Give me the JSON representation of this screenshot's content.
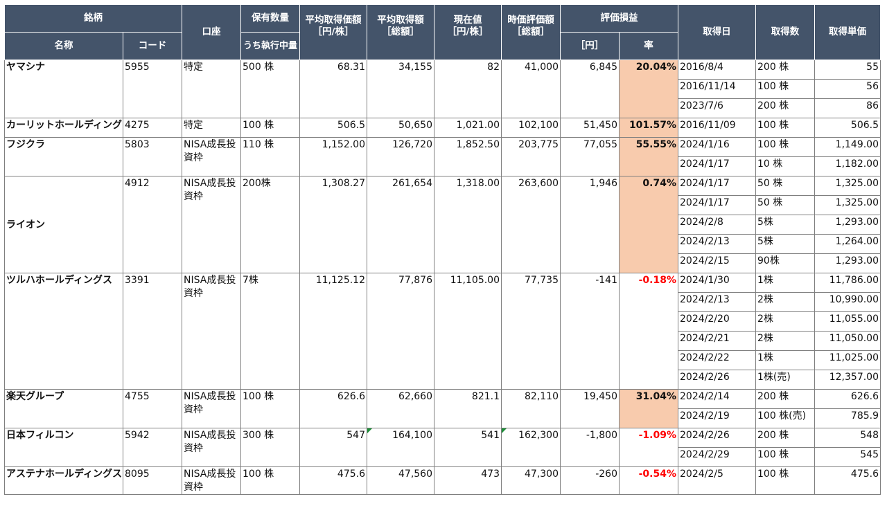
{
  "headers": {
    "meigara": "銘柄",
    "name": "名称",
    "code": "コード",
    "account": "口座",
    "holding": "保有数量",
    "holding_sub": "うち執行中量",
    "avg_price_1": "平均取得価額",
    "avg_price_2": "［円/株］",
    "avg_total_1": "平均取得額",
    "avg_total_2": "［総額］",
    "current_1": "現在値",
    "current_2": "［円/株］",
    "market_1": "時価評価額",
    "market_2": "［総額］",
    "pl": "評価損益",
    "pl_yen": "［円］",
    "pl_rate": "率",
    "acq_date": "取得日",
    "acq_qty": "取得数",
    "acq_price": "取得単価"
  },
  "stocks": [
    {
      "name": "ヤマシナ",
      "code": "5955",
      "account": "特定",
      "qty": "500 株",
      "avg_price": "68.31",
      "avg_total": "34,155",
      "current": "82",
      "market": "41,000",
      "pl": "6,845",
      "rate": "20.04%",
      "rate_sign": "pos",
      "lots": [
        {
          "date": "2016/8/4",
          "qty": "200 株",
          "price": "55"
        },
        {
          "date": "2016/11/14",
          "qty": "100 株",
          "price": "56"
        },
        {
          "date": "2023/7/6",
          "qty": "200 株",
          "price": "86"
        }
      ]
    },
    {
      "name": "カーリットホールディングス",
      "code": "4275",
      "account": "特定",
      "qty": "100 株",
      "avg_price": "506.5",
      "avg_total": "50,650",
      "current": "1,021.00",
      "market": "102,100",
      "pl": "51,450",
      "rate": "101.57%",
      "rate_sign": "pos",
      "lots": [
        {
          "date": "2016/11/09",
          "qty": "100 株",
          "price": "506.5"
        }
      ]
    },
    {
      "name": "フジクラ",
      "code": "5803",
      "account": "NISA成長投資枠",
      "qty": "110 株",
      "avg_price": "1,152.00",
      "avg_total": "126,720",
      "current": "1,852.50",
      "market": "203,775",
      "pl": "77,055",
      "rate": "55.55%",
      "rate_sign": "pos",
      "lots": [
        {
          "date": "2024/1/16",
          "qty": "100 株",
          "price": "1,149.00"
        },
        {
          "date": "2024/1/17",
          "qty": "10 株",
          "price": "1,182.00"
        }
      ]
    },
    {
      "name": "ライオン",
      "code": "4912",
      "account": "NISA成長投資枠",
      "qty": "200株",
      "avg_price": "1,308.27",
      "avg_total": "261,654",
      "current": "1,318.00",
      "market": "263,600",
      "pl": "1,946",
      "rate": "0.74%",
      "rate_sign": "pos",
      "lots": [
        {
          "date": "2024/1/17",
          "qty": "50 株",
          "price": "1,325.00"
        },
        {
          "date": "2024/1/17",
          "qty": "50 株",
          "price": "1,325.00"
        },
        {
          "date": "2024/2/8",
          "qty": "5株",
          "price": "1,293.00"
        },
        {
          "date": "2024/2/13",
          "qty": "5株",
          "price": "1,264.00"
        },
        {
          "date": "2024/2/15",
          "qty": "90株",
          "price": "1,293.00"
        }
      ]
    },
    {
      "name": "ツルハホールディングス",
      "code": "3391",
      "account": "NISA成長投資枠",
      "qty": "7株",
      "avg_price": "11,125.12",
      "avg_total": "77,876",
      "current": "11,105.00",
      "market": "77,735",
      "pl": "-141",
      "rate": "-0.18%",
      "rate_sign": "neg",
      "lots": [
        {
          "date": "2024/1/30",
          "qty": "1株",
          "price": "11,786.00"
        },
        {
          "date": "2024/2/13",
          "qty": "2株",
          "price": "10,990.00"
        },
        {
          "date": "2024/2/20",
          "qty": "2株",
          "price": "11,055.00"
        },
        {
          "date": "2024/2/21",
          "qty": "2株",
          "price": "11,050.00"
        },
        {
          "date": "2024/2/22",
          "qty": "1株",
          "price": "11,025.00"
        },
        {
          "date": "2024/2/26",
          "qty": "1株(売)",
          "price": "12,357.00"
        }
      ]
    },
    {
      "name": "楽天グループ",
      "code": "4755",
      "account": "NISA成長投資枠",
      "qty": "100 株",
      "avg_price": "626.6",
      "avg_total": "62,660",
      "current": "821.1",
      "market": "82,110",
      "pl": "19,450",
      "rate": "31.04%",
      "rate_sign": "pos",
      "lots": [
        {
          "date": "2024/2/14",
          "qty": "200 株",
          "price": "626.6"
        },
        {
          "date": "2024/2/19",
          "qty": "100 株(売)",
          "price": "785.9"
        }
      ]
    },
    {
      "name": "日本フィルコン",
      "code": "5942",
      "account": "NISA成長投資枠",
      "qty": "300 株",
      "avg_price": "547",
      "avg_total": "164,100",
      "current": "541",
      "market": "162,300",
      "pl": "-1,800",
      "rate": "-1.09%",
      "rate_sign": "neg",
      "lots": [
        {
          "date": "2024/2/26",
          "qty": "200 株",
          "price": "548"
        },
        {
          "date": "2024/2/29",
          "qty": "100 株",
          "price": "545"
        }
      ]
    },
    {
      "name": "アステナホールディングス",
      "code": "8095",
      "account": "NISA成長投資枠",
      "qty": "100 株",
      "avg_price": "475.6",
      "avg_total": "47,560",
      "current": "473",
      "market": "47,300",
      "pl": "-260",
      "rate": "-0.54%",
      "rate_sign": "neg",
      "lots": [
        {
          "date": "2024/2/5",
          "qty": "100 株",
          "price": "475.6"
        }
      ]
    }
  ]
}
